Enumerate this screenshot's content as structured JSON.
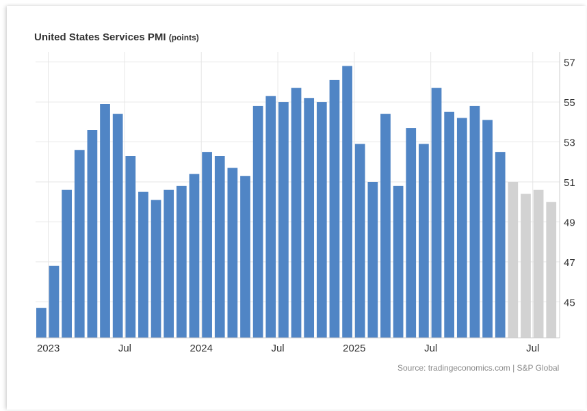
{
  "chart_data": {
    "type": "bar",
    "title": "United States Services PMI",
    "title_unit": "(points)",
    "source": "Source: tradingeconomics.com | S&P Global",
    "ylim": [
      43.2,
      57.5
    ],
    "y_ticks": [
      45,
      47,
      49,
      51,
      53,
      55,
      57
    ],
    "x_tick_labels": [
      {
        "label": "2023",
        "index": 1
      },
      {
        "label": "Jul",
        "index": 7
      },
      {
        "label": "2024",
        "index": 13
      },
      {
        "label": "Jul",
        "index": 19
      },
      {
        "label": "2025",
        "index": 25
      },
      {
        "label": "Jul",
        "index": 31
      },
      {
        "label": "Jul",
        "index": 39
      }
    ],
    "grid": true,
    "colors": {
      "actual": "#5085c5",
      "forecast": "#d2d2d2",
      "grid": "#e6e6e6"
    },
    "series": [
      {
        "kind": "actual",
        "values": [
          44.7,
          46.8,
          50.6,
          52.6,
          53.6,
          54.9,
          54.4,
          52.3,
          50.5,
          50.1,
          50.6,
          50.8,
          51.4,
          52.5,
          52.3,
          51.7,
          51.3,
          54.8,
          55.3,
          55.0,
          55.7,
          55.2,
          55.0,
          56.1,
          56.8,
          52.9,
          51.0,
          54.4,
          50.8,
          53.7,
          52.9,
          55.7,
          54.5,
          54.2,
          54.8,
          54.1,
          52.5
        ]
      },
      {
        "kind": "forecast",
        "values": [
          51.0,
          50.4,
          50.6,
          50.0
        ]
      }
    ]
  }
}
